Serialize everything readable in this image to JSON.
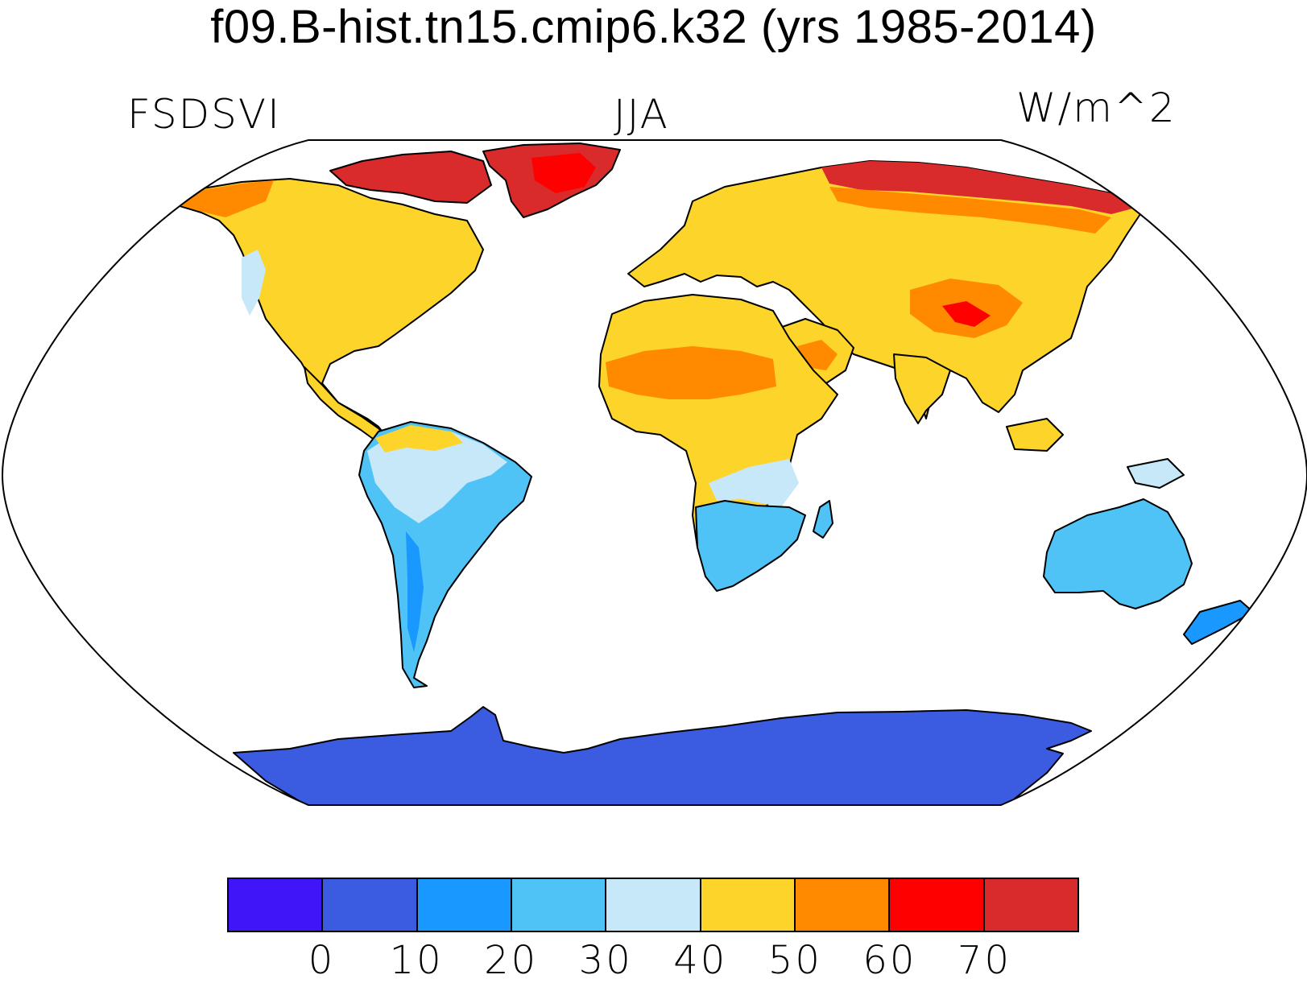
{
  "title": "f09.B-hist.tn15.cmip6.k32 (yrs 1985-2014)",
  "left_label": "FSDSVI",
  "center_label": "JJA",
  "right_label": "W/m^2",
  "colorbar": {
    "levels": [
      "0",
      "10",
      "20",
      "30",
      "40",
      "50",
      "60",
      "70"
    ],
    "colors": [
      "#4016f8",
      "#3b5ce0",
      "#1998ff",
      "#4fc2f6",
      "#c6e8f8",
      "#fdd42a",
      "#ff8a00",
      "#ff0000",
      "#d92b2b"
    ]
  },
  "map": {
    "projection": "robinson",
    "land_outline_color": "#000000",
    "ocean_color": "#ffffff"
  }
}
